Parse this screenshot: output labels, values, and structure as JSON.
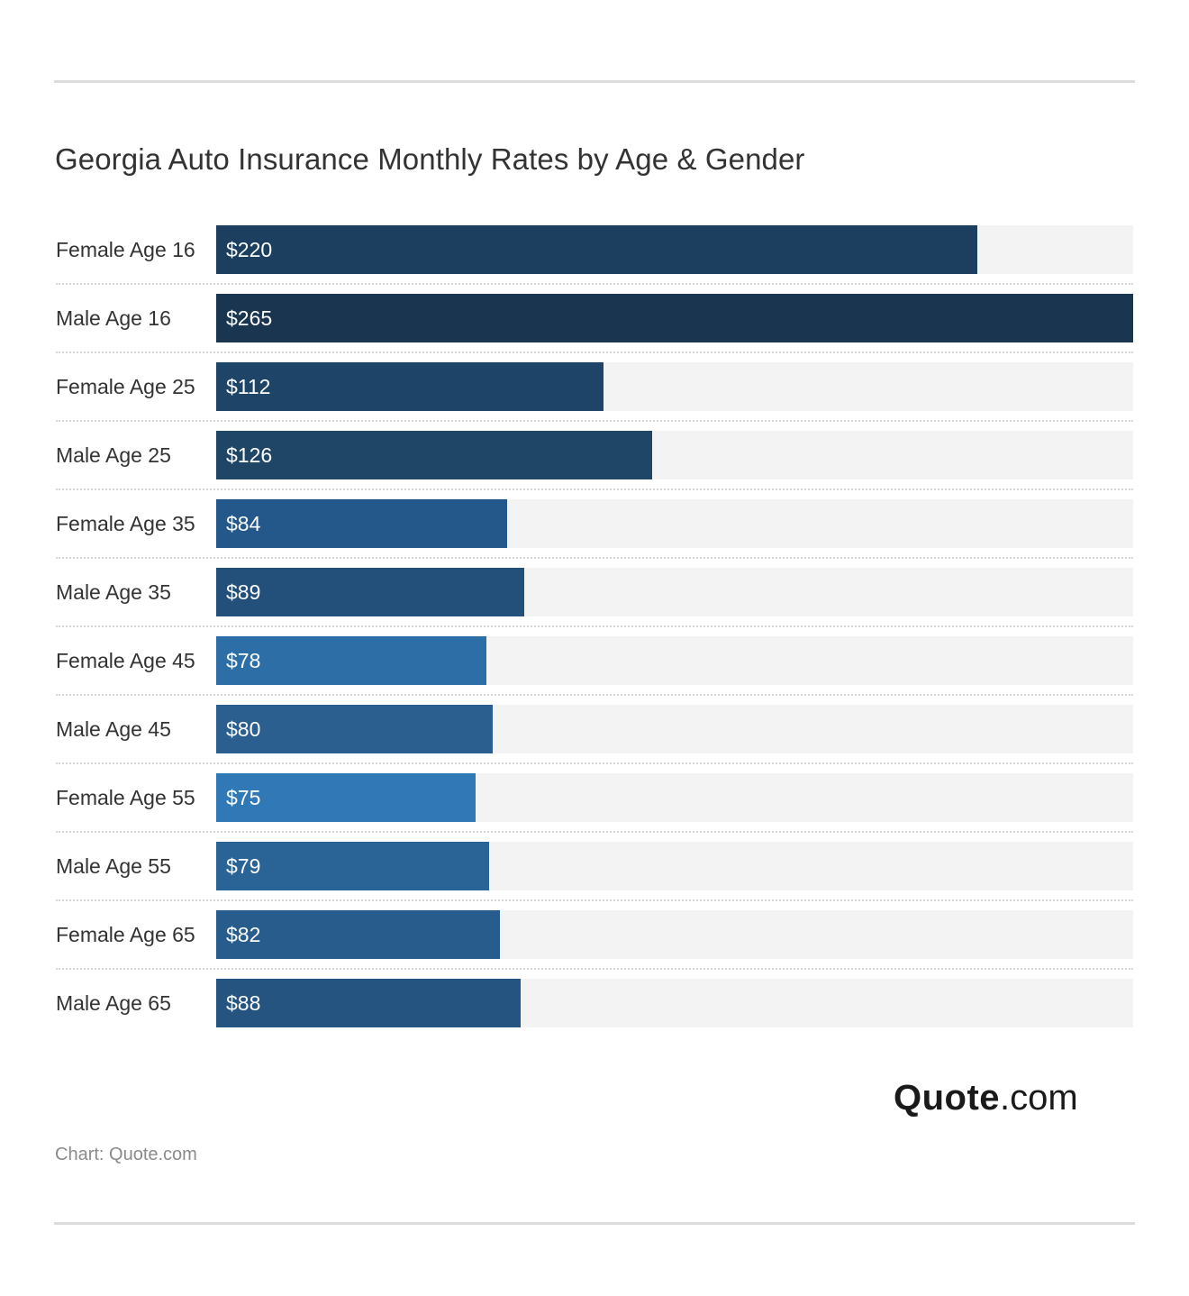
{
  "header": {
    "title": "Georgia Auto Insurance Monthly Rates by Age & Gender"
  },
  "footer": {
    "logo_strong": "Quote",
    "logo_light": ".com",
    "source": "Chart: Quote.com"
  },
  "chart_data": {
    "type": "bar",
    "orientation": "horizontal",
    "title": "Georgia Auto Insurance Monthly Rates by Age & Gender",
    "xlabel": "",
    "ylabel": "",
    "xlim": [
      0,
      265
    ],
    "grid": false,
    "legend": "none",
    "categories": [
      "Female Age 16",
      "Male Age 16",
      "Female Age 25",
      "Male Age 25",
      "Female Age 35",
      "Male Age 35",
      "Female Age 45",
      "Male Age 45",
      "Female Age 55",
      "Male Age 55",
      "Female Age 65",
      "Male Age 65"
    ],
    "values": [
      220,
      265,
      112,
      126,
      84,
      89,
      78,
      80,
      75,
      79,
      82,
      88
    ],
    "value_labels": [
      "$220",
      "$265",
      "$112",
      "$126",
      "$84",
      "$89",
      "$78",
      "$80",
      "$75",
      "$79",
      "$82",
      "$88"
    ],
    "colors": [
      "#1c3f5f",
      "#1a3550",
      "#1e4468",
      "#1f4567",
      "#24578a",
      "#23507a",
      "#2c6ea5",
      "#2a5f90",
      "#3179b6",
      "#2a6396",
      "#285c8c",
      "#24547f"
    ],
    "track_color": "#f3f3f3"
  }
}
